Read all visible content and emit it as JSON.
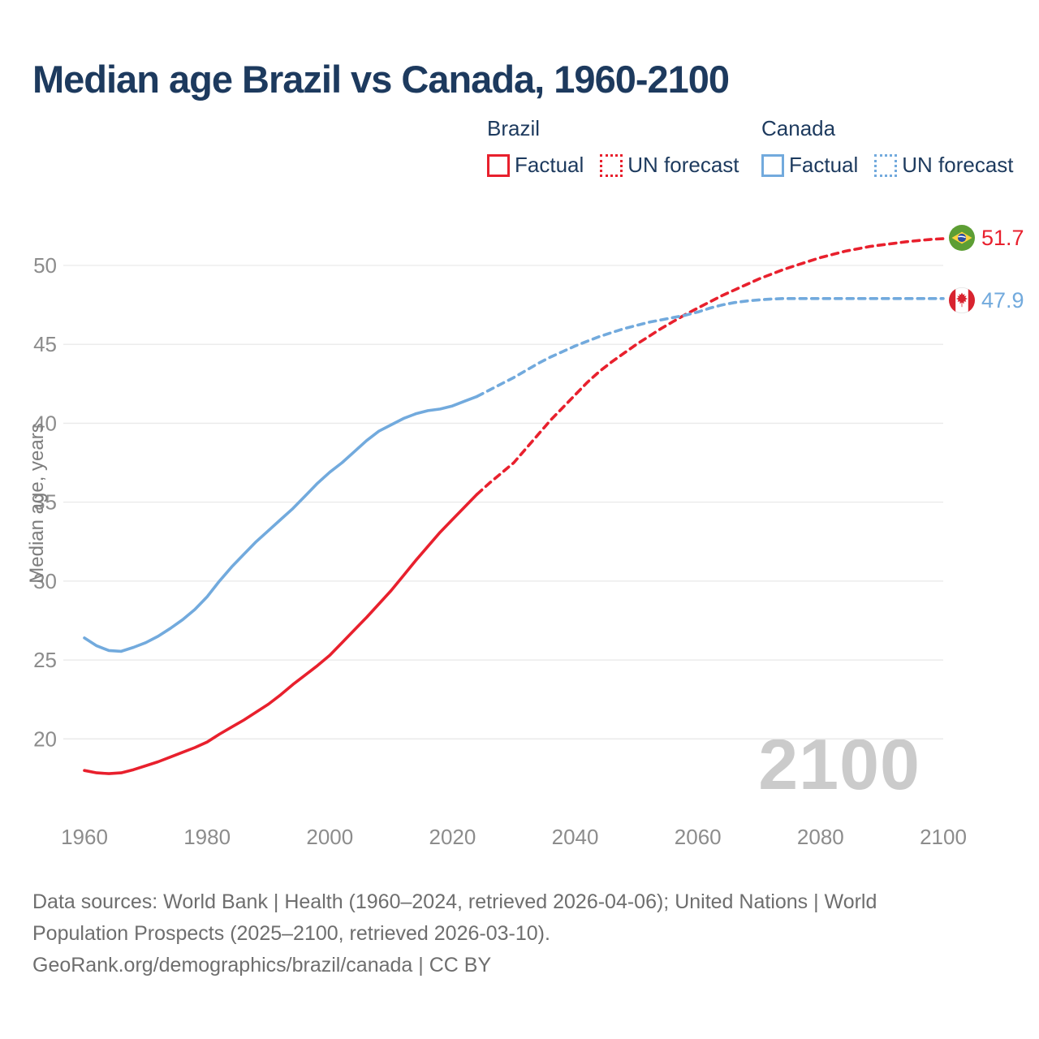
{
  "title": "Median age Brazil vs Canada, 1960-2100",
  "legend": {
    "groups": [
      {
        "name": "Brazil",
        "color": "#e8202d",
        "items": [
          {
            "label": "Factual",
            "style": "solid"
          },
          {
            "label": "UN forecast",
            "style": "dotted"
          }
        ]
      },
      {
        "name": "Canada",
        "color": "#72aadd",
        "items": [
          {
            "label": "Factual",
            "style": "solid"
          },
          {
            "label": "UN forecast",
            "style": "dotted"
          }
        ]
      }
    ]
  },
  "chart_data": {
    "type": "line",
    "title": "Median age Brazil vs Canada, 1960-2100",
    "xlabel": "",
    "ylabel": "Median age, years",
    "x_ticks": [
      1960,
      1980,
      2000,
      2020,
      2040,
      2060,
      2080,
      2100
    ],
    "y_ticks": [
      20,
      25,
      30,
      35,
      40,
      45,
      50
    ],
    "xlim": [
      1960,
      2100
    ],
    "ylim": [
      17.5,
      52.5
    ],
    "grid": "horizontal",
    "legend_position": "top",
    "watermark": "2100",
    "series": [
      {
        "name": "Brazil factual",
        "color": "#e8202d",
        "style": "solid",
        "points": [
          [
            1960,
            18.0
          ],
          [
            1962,
            17.85
          ],
          [
            1964,
            17.8
          ],
          [
            1966,
            17.85
          ],
          [
            1968,
            18.05
          ],
          [
            1970,
            18.3
          ],
          [
            1972,
            18.55
          ],
          [
            1974,
            18.85
          ],
          [
            1976,
            19.15
          ],
          [
            1978,
            19.45
          ],
          [
            1980,
            19.8
          ],
          [
            1982,
            20.3
          ],
          [
            1984,
            20.75
          ],
          [
            1986,
            21.2
          ],
          [
            1988,
            21.7
          ],
          [
            1990,
            22.2
          ],
          [
            1992,
            22.8
          ],
          [
            1994,
            23.45
          ],
          [
            1996,
            24.05
          ],
          [
            1998,
            24.65
          ],
          [
            2000,
            25.3
          ],
          [
            2002,
            26.1
          ],
          [
            2004,
            26.9
          ],
          [
            2006,
            27.7
          ],
          [
            2008,
            28.55
          ],
          [
            2010,
            29.4
          ],
          [
            2012,
            30.35
          ],
          [
            2014,
            31.3
          ],
          [
            2016,
            32.2
          ],
          [
            2018,
            33.1
          ],
          [
            2020,
            33.9
          ],
          [
            2022,
            34.7
          ],
          [
            2024,
            35.5
          ]
        ]
      },
      {
        "name": "Brazil UN forecast",
        "color": "#e8202d",
        "style": "dashed",
        "points": [
          [
            2024,
            35.5
          ],
          [
            2026,
            36.2
          ],
          [
            2028,
            36.85
          ],
          [
            2030,
            37.5
          ],
          [
            2032,
            38.4
          ],
          [
            2034,
            39.3
          ],
          [
            2036,
            40.2
          ],
          [
            2038,
            41.0
          ],
          [
            2040,
            41.8
          ],
          [
            2042,
            42.6
          ],
          [
            2044,
            43.3
          ],
          [
            2046,
            43.9
          ],
          [
            2048,
            44.45
          ],
          [
            2050,
            45.0
          ],
          [
            2052,
            45.5
          ],
          [
            2054,
            46.0
          ],
          [
            2056,
            46.45
          ],
          [
            2058,
            46.9
          ],
          [
            2060,
            47.3
          ],
          [
            2062,
            47.7
          ],
          [
            2064,
            48.1
          ],
          [
            2066,
            48.45
          ],
          [
            2068,
            48.8
          ],
          [
            2070,
            49.15
          ],
          [
            2072,
            49.45
          ],
          [
            2074,
            49.75
          ],
          [
            2076,
            50.0
          ],
          [
            2078,
            50.25
          ],
          [
            2080,
            50.5
          ],
          [
            2082,
            50.7
          ],
          [
            2084,
            50.9
          ],
          [
            2086,
            51.05
          ],
          [
            2088,
            51.2
          ],
          [
            2090,
            51.3
          ],
          [
            2092,
            51.4
          ],
          [
            2094,
            51.5
          ],
          [
            2096,
            51.58
          ],
          [
            2098,
            51.65
          ],
          [
            2100,
            51.7
          ]
        ]
      },
      {
        "name": "Canada factual",
        "color": "#72aadd",
        "style": "solid",
        "points": [
          [
            1960,
            26.4
          ],
          [
            1962,
            25.9
          ],
          [
            1964,
            25.6
          ],
          [
            1966,
            25.55
          ],
          [
            1968,
            25.8
          ],
          [
            1970,
            26.1
          ],
          [
            1972,
            26.5
          ],
          [
            1974,
            27.0
          ],
          [
            1976,
            27.55
          ],
          [
            1978,
            28.2
          ],
          [
            1980,
            29.0
          ],
          [
            1982,
            30.0
          ],
          [
            1984,
            30.9
          ],
          [
            1986,
            31.7
          ],
          [
            1988,
            32.5
          ],
          [
            1990,
            33.2
          ],
          [
            1992,
            33.9
          ],
          [
            1994,
            34.6
          ],
          [
            1996,
            35.4
          ],
          [
            1998,
            36.2
          ],
          [
            2000,
            36.9
          ],
          [
            2002,
            37.5
          ],
          [
            2004,
            38.2
          ],
          [
            2006,
            38.9
          ],
          [
            2008,
            39.5
          ],
          [
            2010,
            39.9
          ],
          [
            2012,
            40.3
          ],
          [
            2014,
            40.6
          ],
          [
            2016,
            40.8
          ],
          [
            2018,
            40.9
          ],
          [
            2020,
            41.1
          ],
          [
            2022,
            41.4
          ],
          [
            2024,
            41.7
          ]
        ]
      },
      {
        "name": "Canada UN forecast",
        "color": "#72aadd",
        "style": "dashed",
        "points": [
          [
            2024,
            41.7
          ],
          [
            2026,
            42.1
          ],
          [
            2028,
            42.5
          ],
          [
            2030,
            42.9
          ],
          [
            2032,
            43.35
          ],
          [
            2034,
            43.8
          ],
          [
            2036,
            44.2
          ],
          [
            2038,
            44.55
          ],
          [
            2040,
            44.9
          ],
          [
            2042,
            45.2
          ],
          [
            2044,
            45.5
          ],
          [
            2046,
            45.75
          ],
          [
            2048,
            46.0
          ],
          [
            2050,
            46.2
          ],
          [
            2052,
            46.4
          ],
          [
            2054,
            46.55
          ],
          [
            2056,
            46.7
          ],
          [
            2058,
            46.85
          ],
          [
            2060,
            47.05
          ],
          [
            2062,
            47.3
          ],
          [
            2064,
            47.5
          ],
          [
            2066,
            47.65
          ],
          [
            2068,
            47.75
          ],
          [
            2070,
            47.82
          ],
          [
            2072,
            47.87
          ],
          [
            2074,
            47.9
          ],
          [
            2076,
            47.9
          ],
          [
            2078,
            47.9
          ],
          [
            2080,
            47.9
          ],
          [
            2084,
            47.9
          ],
          [
            2088,
            47.9
          ],
          [
            2092,
            47.9
          ],
          [
            2096,
            47.9
          ],
          [
            2100,
            47.9
          ]
        ]
      }
    ],
    "end_labels": [
      {
        "series": "Brazil",
        "flag": "brazil-flag",
        "value": "51.7"
      },
      {
        "series": "Canada",
        "flag": "canada-flag",
        "value": "47.9"
      }
    ]
  },
  "footer": {
    "lines": [
      "Data sources: World Bank | Health (1960–2024, retrieved 2026-04-06); United Nations | World",
      "Population Prospects (2025–2100, retrieved 2026-03-10).",
      "GeoRank.org/demographics/brazil/canada | CC BY"
    ]
  }
}
